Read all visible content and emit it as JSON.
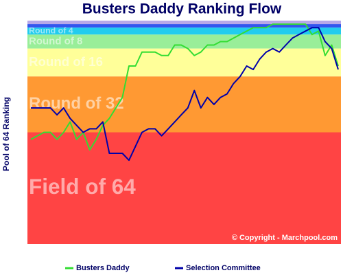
{
  "chart_data": {
    "type": "line",
    "title": "Busters Daddy Ranking Flow",
    "y_label": "Pool of 64 Ranking",
    "credit": "© Copyright - Marchpool.com",
    "ylim": [
      64,
      0
    ],
    "bands": [
      {
        "from": 0,
        "to": 1,
        "color": "#b8a8e8"
      },
      {
        "from": 1,
        "to": 2,
        "color": "#3355ee"
      },
      {
        "label": "Round of 4",
        "from": 2,
        "to": 4,
        "color": "#22ccee"
      },
      {
        "label": "Round of 8",
        "from": 4,
        "to": 8,
        "color": "#99ee99"
      },
      {
        "label": "Round of 16",
        "from": 8,
        "to": 16,
        "color": "#ffff99"
      },
      {
        "label": "Round of 32",
        "from": 16,
        "to": 32,
        "color": "#ff9933"
      },
      {
        "label": "Field of 64",
        "from": 32,
        "to": 64,
        "color": "#ff4444"
      }
    ],
    "series": [
      {
        "name": "Busters Daddy",
        "color": "#33dd33",
        "values": [
          34,
          33,
          32,
          32,
          34,
          32,
          29,
          34,
          32,
          37,
          34,
          30,
          28,
          25,
          22,
          13,
          13,
          9,
          9,
          9,
          10,
          10,
          7,
          7,
          8,
          10,
          9,
          7,
          7,
          6,
          6,
          5,
          4,
          3,
          2,
          2,
          2,
          1,
          1,
          1,
          1,
          1,
          1,
          4,
          3,
          10,
          7,
          13
        ]
      },
      {
        "name": "Selection Committee",
        "color": "#0000aa",
        "values": [
          25,
          25,
          25,
          25,
          27,
          25,
          28,
          30,
          32,
          31,
          31,
          29,
          38,
          38,
          38,
          40,
          36,
          32,
          31,
          31,
          33,
          31,
          29,
          27,
          25,
          20,
          25,
          22,
          24,
          22,
          21,
          18,
          16,
          13,
          14,
          11,
          9,
          8,
          9,
          7,
          5,
          4,
          3,
          2,
          2,
          6,
          8,
          14
        ]
      }
    ]
  }
}
